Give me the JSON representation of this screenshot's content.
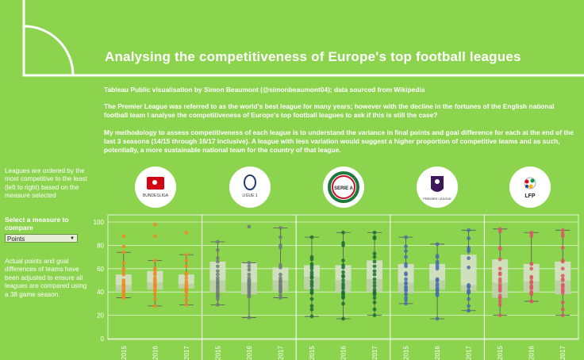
{
  "header": {
    "title": "Analysing the competitiveness of Europe's top football leagues",
    "credit": "Tableau Public visualisation by Simon Beaumont (@simonbeaumont04); data sourced from Wikipedia",
    "intro": "The Premier League was referred to as the world's best league for many years; however with the decline in the fortunes of the English national football team I analyse the competitiveness of Europe's top football leagues to ask if this is still the case?",
    "method": "My methodology to assess competitiveness of each league is to understand the variance in final points and goal difference for each at the end of the last 3 seasons (14/15 through 16/17 inclusive). A league with less variation would suggest a higher proportion of competitive teams and as such, potentially, a more sustainable national team for the country of that league."
  },
  "sidebar": {
    "order_note": "Leagues are ordered by the most competitive to the least (left to right) based on the measure selected",
    "measure_label": "Select a measure to compare",
    "measure_value": "Points",
    "adjust_note": "Actual points and goal differences of teams have been adjusted to ensure all leagues are compared using a 38 game season."
  },
  "logos": [
    {
      "league": "Bundesliga",
      "text": "BUNDESLIGA",
      "icon": "bundesliga-logo"
    },
    {
      "league": "Ligue 1",
      "text": "LIGUE 1",
      "icon": "ligue1-logo"
    },
    {
      "league": "Serie A",
      "text": "SERIE A",
      "icon": "seriea-logo"
    },
    {
      "league": "Premier League",
      "text": "PREMIER LEAGUE",
      "icon": "premier-league-logo"
    },
    {
      "league": "La Liga",
      "text": "LFP",
      "icon": "lfp-logo"
    }
  ],
  "colors": {
    "background": "#8cd44e",
    "bundesliga": "#f08a24",
    "ligue1": "#707c7a",
    "seriea": "#1f6e35",
    "premier": "#4a6fae",
    "laliga": "#d95a66",
    "box": "#cfdcbf"
  },
  "chart_data": {
    "type": "box",
    "y_ticks": [
      0,
      20,
      40,
      60,
      80,
      100
    ],
    "ylim": [
      0,
      100
    ],
    "grid": true,
    "leagues": [
      {
        "name": "Bundesliga",
        "color_key": "bundesliga",
        "seasons": [
          {
            "season": "2015",
            "min": 35,
            "q1": 41,
            "median": 46,
            "q3": 55,
            "max": 74,
            "points": [
              88,
              79,
              74,
              65,
              60,
              58,
              55,
              50,
              48,
              46,
              45,
              44,
              42,
              41,
              40,
              38,
              36,
              35
            ]
          },
          {
            "season": "2016",
            "min": 28,
            "q1": 42,
            "median": 48,
            "q3": 58,
            "max": 67,
            "points": [
              98,
              88,
              67,
              60,
              58,
              56,
              55,
              52,
              50,
              48,
              46,
              45,
              44,
              42,
              41,
              38,
              34,
              28
            ]
          },
          {
            "season": "2017",
            "min": 29,
            "q1": 43,
            "median": 47,
            "q3": 55,
            "max": 72,
            "points": [
              91,
              72,
              67,
              62,
              56,
              55,
              52,
              49,
              47,
              45,
              44,
              43,
              42,
              41,
              40,
              37,
              33,
              29
            ]
          }
        ]
      },
      {
        "name": "Ligue 1",
        "color_key": "ligue1",
        "seasons": [
          {
            "season": "2015",
            "min": 29,
            "q1": 40,
            "median": 50,
            "q3": 66,
            "max": 83,
            "points": [
              83,
              76,
              69,
              66,
              62,
              58,
              55,
              52,
              50,
              48,
              47,
              45,
              44,
              42,
              40,
              38,
              37,
              36,
              34,
              29
            ]
          },
          {
            "season": "2016",
            "min": 18,
            "q1": 38,
            "median": 48,
            "q3": 65,
            "max": 65,
            "points": [
              96,
              65,
              62,
              59,
              55,
              52,
              50,
              49,
              48,
              47,
              46,
              45,
              44,
              43,
              41,
              40,
              38,
              37,
              36,
              18
            ]
          },
          {
            "season": "2017",
            "min": 35,
            "q1": 41,
            "median": 50,
            "q3": 61,
            "max": 95,
            "points": [
              95,
              87,
              80,
              78,
              63,
              61,
              55,
              52,
              50,
              49,
              48,
              46,
              45,
              44,
              43,
              42,
              41,
              40,
              37,
              35
            ]
          }
        ]
      },
      {
        "name": "Serie A",
        "color_key": "seriea",
        "seasons": [
          {
            "season": "2015",
            "min": 19,
            "q1": 42,
            "median": 53,
            "q3": 63,
            "max": 87,
            "points": [
              87,
              70,
              68,
              64,
              62,
              60,
              57,
              55,
              53,
              52,
              49,
              47,
              45,
              42,
              40,
              39,
              34,
              28,
              25,
              19
            ]
          },
          {
            "season": "2016",
            "min": 17,
            "q1": 39,
            "median": 50,
            "q3": 63,
            "max": 91,
            "points": [
              91,
              82,
              80,
              67,
              63,
              61,
              57,
              54,
              53,
              50,
              47,
              45,
              43,
              40,
              39,
              38,
              36,
              35,
              30,
              17
            ]
          },
          {
            "season": "2017",
            "min": 20,
            "q1": 40,
            "median": 51,
            "q3": 67,
            "max": 91,
            "points": [
              91,
              87,
              86,
              73,
              70,
              66,
              62,
              58,
              55,
              51,
              48,
              45,
              42,
              40,
              39,
              38,
              35,
              31,
              25,
              20
            ]
          }
        ]
      },
      {
        "name": "Premier League",
        "color_key": "premier",
        "seasons": [
          {
            "season": "2015",
            "min": 30,
            "q1": 39,
            "median": 48,
            "q3": 64,
            "max": 87,
            "points": [
              87,
              79,
              75,
              70,
              64,
              62,
              56,
              55,
              51,
              48,
              47,
              44,
              44,
              42,
              41,
              38,
              38,
              35,
              33,
              30
            ]
          },
          {
            "season": "2016",
            "min": 17,
            "q1": 42,
            "median": 50,
            "q3": 64,
            "max": 81,
            "points": [
              81,
              71,
              70,
              66,
              64,
              62,
              60,
              51,
              50,
              50,
              47,
              45,
              43,
              42,
              42,
              41,
              39,
              38,
              37,
              17
            ]
          },
          {
            "season": "2017",
            "min": 24,
            "q1": 41,
            "median": 46,
            "q3": 72,
            "max": 93,
            "points": [
              93,
              86,
              78,
              76,
              75,
              69,
              61,
              46,
              45,
              45,
              44,
              41,
              41,
              40,
              40,
              39,
              34,
              28,
              24,
              24
            ]
          }
        ]
      },
      {
        "name": "La Liga",
        "color_key": "laliga",
        "seasons": [
          {
            "season": "2015",
            "min": 20,
            "q1": 35,
            "median": 48,
            "q3": 68,
            "max": 94,
            "points": [
              94,
              92,
              78,
              77,
              68,
              60,
              56,
              55,
              51,
              49,
              46,
              44,
              42,
              41,
              37,
              35,
              35,
              32,
              29,
              20
            ]
          },
          {
            "season": "2016",
            "min": 32,
            "q1": 40,
            "median": 49,
            "q3": 64,
            "max": 91,
            "points": [
              91,
              90,
              88,
              64,
              64,
              60,
              53,
              52,
              49,
              48,
              48,
              45,
              44,
              44,
              43,
              40,
              39,
              38,
              32,
              32
            ]
          },
          {
            "season": "2017",
            "min": 20,
            "q1": 38,
            "median": 50,
            "q3": 66,
            "max": 93,
            "points": [
              93,
              90,
              88,
              78,
              67,
              66,
              60,
              54,
              51,
              50,
              46,
              46,
              45,
              43,
              41,
              41,
              39,
              31,
              25,
              20
            ]
          }
        ]
      }
    ]
  }
}
